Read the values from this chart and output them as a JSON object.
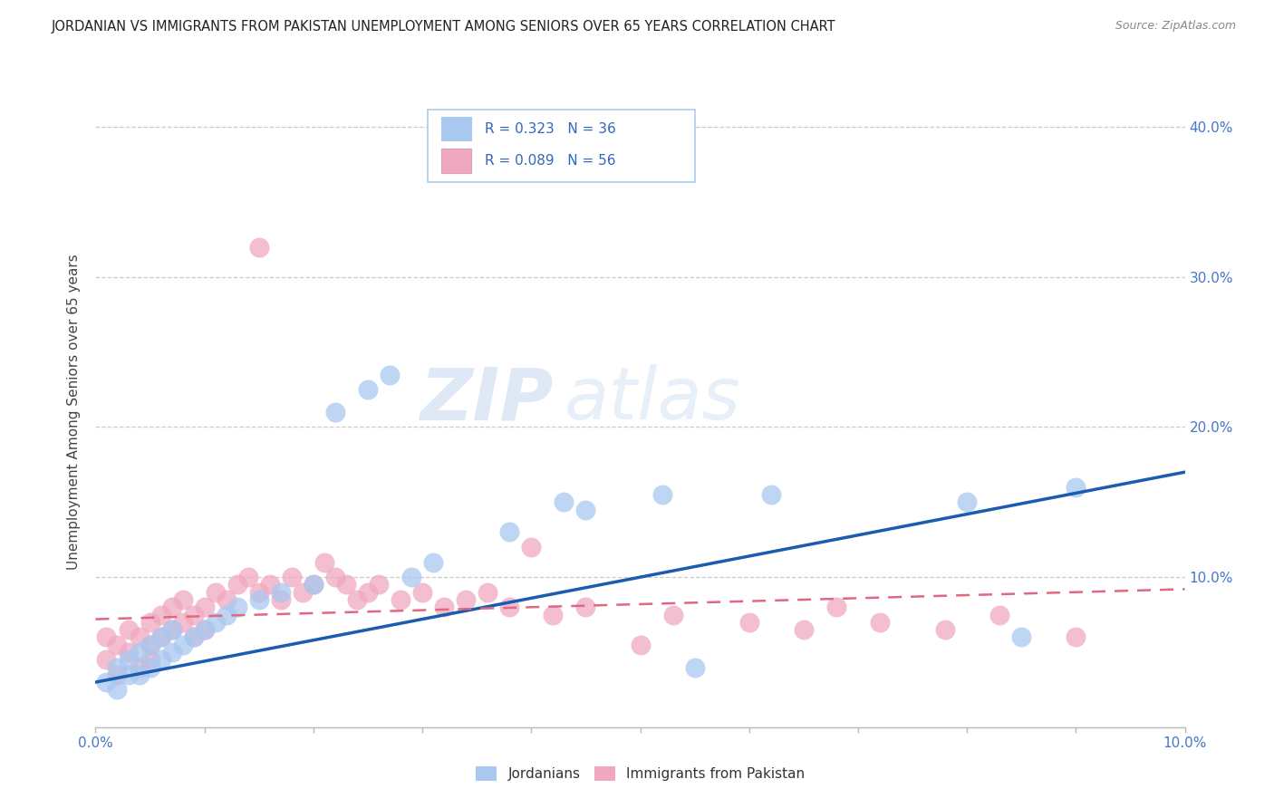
{
  "title": "JORDANIAN VS IMMIGRANTS FROM PAKISTAN UNEMPLOYMENT AMONG SENIORS OVER 65 YEARS CORRELATION CHART",
  "source": "Source: ZipAtlas.com",
  "ylabel": "Unemployment Among Seniors over 65 years",
  "xlim": [
    0.0,
    0.1
  ],
  "ylim": [
    0.0,
    0.42
  ],
  "legend_jordan_R": 0.323,
  "legend_jordan_N": 36,
  "legend_pak_R": 0.089,
  "legend_pak_N": 56,
  "jordan_color": "#a8c8f0",
  "pak_color": "#f0a8c0",
  "jordan_line_color": "#1a5cb0",
  "pak_line_color": "#e06880",
  "background_color": "#ffffff",
  "watermark_zip": "ZIP",
  "watermark_atlas": "atlas",
  "jordanians_x": [
    0.001,
    0.002,
    0.002,
    0.003,
    0.003,
    0.004,
    0.004,
    0.005,
    0.005,
    0.006,
    0.006,
    0.007,
    0.007,
    0.008,
    0.009,
    0.01,
    0.011,
    0.012,
    0.013,
    0.015,
    0.017,
    0.02,
    0.022,
    0.025,
    0.027,
    0.029,
    0.031,
    0.038,
    0.043,
    0.045,
    0.052,
    0.055,
    0.062,
    0.08,
    0.085,
    0.09
  ],
  "jordanians_y": [
    0.03,
    0.025,
    0.04,
    0.035,
    0.045,
    0.05,
    0.035,
    0.055,
    0.04,
    0.045,
    0.06,
    0.05,
    0.065,
    0.055,
    0.06,
    0.065,
    0.07,
    0.075,
    0.08,
    0.085,
    0.09,
    0.095,
    0.21,
    0.225,
    0.235,
    0.1,
    0.11,
    0.13,
    0.15,
    0.145,
    0.155,
    0.04,
    0.155,
    0.15,
    0.06,
    0.16
  ],
  "pakistan_x": [
    0.001,
    0.001,
    0.002,
    0.002,
    0.003,
    0.003,
    0.004,
    0.004,
    0.005,
    0.005,
    0.005,
    0.006,
    0.006,
    0.007,
    0.007,
    0.008,
    0.008,
    0.009,
    0.009,
    0.01,
    0.01,
    0.011,
    0.012,
    0.013,
    0.014,
    0.015,
    0.015,
    0.016,
    0.017,
    0.018,
    0.019,
    0.02,
    0.021,
    0.022,
    0.023,
    0.024,
    0.025,
    0.026,
    0.028,
    0.03,
    0.032,
    0.034,
    0.036,
    0.038,
    0.04,
    0.042,
    0.045,
    0.05,
    0.053,
    0.06,
    0.065,
    0.068,
    0.072,
    0.078,
    0.083,
    0.09
  ],
  "pakistan_y": [
    0.045,
    0.06,
    0.035,
    0.055,
    0.05,
    0.065,
    0.04,
    0.06,
    0.055,
    0.045,
    0.07,
    0.06,
    0.075,
    0.065,
    0.08,
    0.07,
    0.085,
    0.06,
    0.075,
    0.065,
    0.08,
    0.09,
    0.085,
    0.095,
    0.1,
    0.32,
    0.09,
    0.095,
    0.085,
    0.1,
    0.09,
    0.095,
    0.11,
    0.1,
    0.095,
    0.085,
    0.09,
    0.095,
    0.085,
    0.09,
    0.08,
    0.085,
    0.09,
    0.08,
    0.12,
    0.075,
    0.08,
    0.055,
    0.075,
    0.07,
    0.065,
    0.08,
    0.07,
    0.065,
    0.075,
    0.06
  ]
}
